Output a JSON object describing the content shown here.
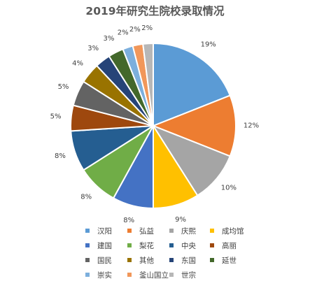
{
  "chart_data": {
    "type": "pie",
    "title": "2019年研究生院校录取情况",
    "slices": [
      {
        "label": "汉阳",
        "value": 19,
        "display": "19%",
        "color": "#5b9bd5"
      },
      {
        "label": "弘益",
        "value": 12,
        "display": "12%",
        "color": "#ed7d31"
      },
      {
        "label": "庆熙",
        "value": 10,
        "display": "10%",
        "color": "#a5a5a5"
      },
      {
        "label": "成均馆",
        "value": 9,
        "display": "9%",
        "color": "#ffc000"
      },
      {
        "label": "建国",
        "value": 8,
        "display": "8%",
        "color": "#4472c4"
      },
      {
        "label": "梨花",
        "value": 8,
        "display": "8%",
        "color": "#70ad47"
      },
      {
        "label": "中央",
        "value": 8,
        "display": "8%",
        "color": "#255e91"
      },
      {
        "label": "高丽",
        "value": 5,
        "display": "5%",
        "color": "#9e480e"
      },
      {
        "label": "国民",
        "value": 5,
        "display": "5%",
        "color": "#636363"
      },
      {
        "label": "其他",
        "value": 4,
        "display": "4%",
        "color": "#997300"
      },
      {
        "label": "东国",
        "value": 3,
        "display": "3%",
        "color": "#264478"
      },
      {
        "label": "延世",
        "value": 3,
        "display": "3%",
        "color": "#43682b"
      },
      {
        "label": "崇实",
        "value": 2,
        "display": "2%",
        "color": "#7cafdd"
      },
      {
        "label": "釜山国立",
        "value": 2,
        "display": "2%",
        "color": "#f1975a"
      },
      {
        "label": "世宗",
        "value": 2,
        "display": "2%",
        "color": "#b7b7b7"
      }
    ],
    "legend_position": "bottom"
  }
}
